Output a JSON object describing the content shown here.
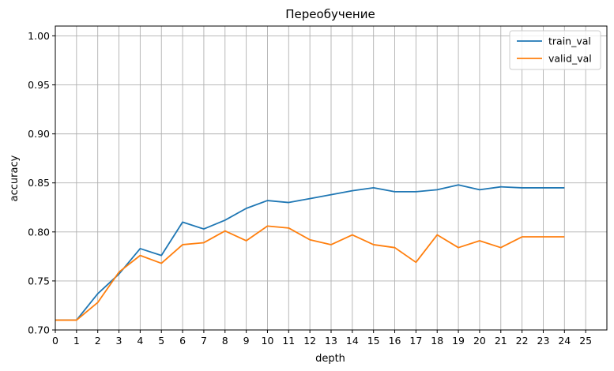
{
  "chart_data": {
    "type": "line",
    "title": "Переобучение",
    "xlabel": "depth",
    "ylabel": "accuracy",
    "xlim": [
      0,
      26
    ],
    "ylim": [
      0.7,
      1.01
    ],
    "x_ticks": [
      0,
      1,
      2,
      3,
      4,
      5,
      6,
      7,
      8,
      9,
      10,
      11,
      12,
      13,
      14,
      15,
      16,
      17,
      18,
      19,
      20,
      21,
      22,
      23,
      24,
      25
    ],
    "y_ticks": [
      0.7,
      0.75,
      0.8,
      0.85,
      0.9,
      0.95,
      1.0
    ],
    "y_tick_labels": [
      "0.70",
      "0.75",
      "0.80",
      "0.85",
      "0.90",
      "0.95",
      "1.00"
    ],
    "grid": true,
    "legend_position": "top-right",
    "x": [
      0,
      1,
      2,
      3,
      4,
      5,
      6,
      7,
      8,
      9,
      10,
      11,
      12,
      13,
      14,
      15,
      16,
      17,
      18,
      19,
      20,
      21,
      22,
      23,
      24
    ],
    "series": [
      {
        "name": "train_val",
        "color": "#1f77b4",
        "values": [
          0.71,
          0.71,
          0.737,
          0.757,
          0.783,
          0.776,
          0.81,
          0.803,
          0.812,
          0.824,
          0.832,
          0.83,
          0.834,
          0.838,
          0.842,
          0.845,
          0.841,
          0.841,
          0.843,
          0.848,
          0.843,
          0.846,
          0.845,
          0.845,
          0.845
        ]
      },
      {
        "name": "valid_val",
        "color": "#ff7f0e",
        "values": [
          0.71,
          0.71,
          0.728,
          0.759,
          0.776,
          0.768,
          0.787,
          0.789,
          0.801,
          0.791,
          0.806,
          0.804,
          0.792,
          0.787,
          0.797,
          0.787,
          0.784,
          0.769,
          0.797,
          0.784,
          0.791,
          0.784,
          0.795,
          0.795,
          0.795
        ]
      }
    ]
  }
}
